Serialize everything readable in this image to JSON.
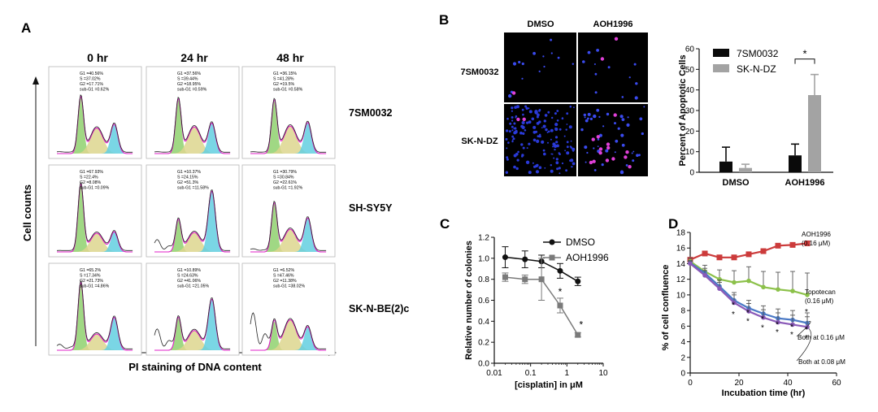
{
  "panels": {
    "A": {
      "label": "A",
      "columns": [
        "0 hr",
        "24 hr",
        "48 hr"
      ],
      "rows": [
        "7SM0032",
        "SH-SY5Y",
        "SK-N-BE(2)c"
      ],
      "y_label": "Cell counts",
      "x_label": "PI staining of DNA content",
      "stats": [
        [
          {
            "g1": "G1 =40.56%",
            "s": "S =37.02%",
            "g2": "G2 =17.71%",
            "subg1": "sub-G1 =0.62%"
          },
          {
            "g1": "G1 =37.56%",
            "s": "S =39.44%",
            "g2": "G2 =18.95%",
            "subg1": "sub-G1 =0.59%"
          },
          {
            "g1": "G1 =36.15%",
            "s": "S =41.28%",
            "g2": "G2 =19.5%",
            "subg1": "sub-G1 =0.58%"
          }
        ],
        [
          {
            "g1": "G1 =67.93%",
            "s": "S =22.4%",
            "g2": "G2 =8.08%",
            "subg1": "sub-G1 =0.09%"
          },
          {
            "g1": "G1 =10.37%",
            "s": "S =24.15%",
            "g2": "G2 =51.3%",
            "subg1": "sub-G1 =11.58%"
          },
          {
            "g1": "G1 =30.79%",
            "s": "S =30.84%",
            "g2": "G2 =22.61%",
            "subg1": "sub-G1 =1.92%"
          }
        ],
        [
          {
            "g1": "G1 =65.2%",
            "s": "S =17.34%",
            "g2": "G2 =21.73%",
            "subg1": "sub-G1 =4.86%"
          },
          {
            "g1": "G1 =10.89%",
            "s": "S =24.63%",
            "g2": "G2 =41.06%",
            "subg1": "sub-G1 =21.05%"
          },
          {
            "g1": "G1 =6.52%",
            "s": "S =47.46%",
            "g2": "G2 =11.38%",
            "subg1": "sub-G1 =38.02%"
          }
        ]
      ]
    },
    "B": {
      "label": "B",
      "image_columns": [
        "DMSO",
        "AOH1996"
      ],
      "image_rows": [
        "7SM0032",
        "SK-N-DZ"
      ]
    },
    "C": {
      "label": "C"
    },
    "D": {
      "label": "D"
    }
  },
  "colors": {
    "g1": "#8fd16f",
    "s": "#ddd68e",
    "g2": "#63cfe0",
    "fit": "#e020c8",
    "black_bar": "#0a0a0a",
    "gray_bar": "#a3a3a3",
    "dmso": "#111111",
    "aoh": "#7a7a7a",
    "d_red": "#cc3b3b",
    "d_green": "#8cc14a",
    "d_blue": "#4a79c5",
    "d_purple": "#8a5ab8"
  },
  "chart_data": [
    {
      "type": "bar",
      "panel": "B",
      "categories": [
        "DMSO",
        "AOH1996"
      ],
      "series": [
        {
          "name": "7SM0032",
          "values": [
            5.2,
            8.2
          ],
          "errors": [
            7,
            5.5
          ]
        },
        {
          "name": "SK-N-DZ",
          "values": [
            2.1,
            37.5
          ],
          "errors": [
            1.8,
            10
          ]
        }
      ],
      "ylabel": "Percent of Apoptotic Cells",
      "ylim": [
        0,
        60
      ],
      "yticks": [
        "0",
        "10",
        "20",
        "30",
        "40",
        "50",
        "60"
      ],
      "annotations": [
        "*"
      ],
      "legend": "top-right",
      "grid": false
    },
    {
      "type": "line",
      "panel": "C",
      "x_scale": "log",
      "xlim": [
        0.01,
        10
      ],
      "xticks": [
        "0.01",
        "0.1",
        "1",
        "10"
      ],
      "ylim": [
        0.0,
        1.2
      ],
      "yticks": [
        "0.0",
        "0.2",
        "0.4",
        "0.6",
        "0.8",
        "1.0",
        "1.2"
      ],
      "xlabel": "[cisplatin] in μM",
      "ylabel": "Relative number of colonies",
      "series": [
        {
          "name": "DMSO",
          "marker": "circle",
          "x": [
            0.02,
            0.07,
            0.2,
            0.65,
            2.0
          ],
          "y": [
            1.01,
            0.99,
            0.97,
            0.88,
            0.78
          ],
          "errors": [
            0.1,
            0.08,
            0.06,
            0.07,
            0.04
          ]
        },
        {
          "name": "AOH1996",
          "marker": "square",
          "x": [
            0.02,
            0.07,
            0.2,
            0.65,
            2.0
          ],
          "y": [
            0.82,
            0.8,
            0.8,
            0.55,
            0.27
          ],
          "errors": [
            0.04,
            0.04,
            0.2,
            0.07,
            0.02
          ]
        }
      ],
      "annotations": [
        "*",
        "*"
      ],
      "legend": "top-right",
      "grid": false
    },
    {
      "type": "line",
      "panel": "D",
      "xlim": [
        0,
        60
      ],
      "xticks": [
        "0",
        "20",
        "40",
        "60"
      ],
      "ylim": [
        0,
        18
      ],
      "yticks": [
        "0",
        "2",
        "4",
        "6",
        "8",
        "10",
        "12",
        "14",
        "16",
        "18"
      ],
      "xlabel": "Incubation time (hr)",
      "ylabel": "% of cell confluence",
      "series": [
        {
          "name": "AOH1996 (0.16 μM)",
          "label_lines": [
            "AOH1996",
            "(0.16 μM)"
          ],
          "x": [
            0,
            6,
            12,
            18,
            24,
            30,
            36,
            42,
            48
          ],
          "y": [
            14.5,
            15.3,
            14.8,
            14.8,
            15.2,
            15.6,
            16.3,
            16.4,
            16.6
          ],
          "errors": [
            0.2,
            0.2,
            0.2,
            0.2,
            0.2,
            0.3,
            0.3,
            0.3,
            0.3
          ]
        },
        {
          "name": "Topotecan (0.16 μM)",
          "label_lines": [
            "Topotecan",
            "(0.16 μM)"
          ],
          "x": [
            0,
            6,
            12,
            18,
            24,
            30,
            36,
            42,
            48
          ],
          "y": [
            14.3,
            13.0,
            12.0,
            11.6,
            11.8,
            11.0,
            10.7,
            10.5,
            10.0
          ],
          "errors": [
            0.4,
            0.8,
            1.2,
            1.5,
            1.8,
            2.0,
            2.2,
            2.5,
            2.8
          ]
        },
        {
          "name": "Both at 0.16 μM",
          "label_lines": [
            "Both at 0.16 μM"
          ],
          "x": [
            0,
            6,
            12,
            18,
            24,
            30,
            36,
            42,
            48
          ],
          "y": [
            14.1,
            12.8,
            11.1,
            9.3,
            8.3,
            7.6,
            7.0,
            6.8,
            6.4
          ],
          "errors": [
            0.3,
            0.6,
            0.8,
            1.0,
            1.0,
            1.0,
            1.2,
            1.2,
            1.3
          ]
        },
        {
          "name": "Both at 0.08 μM",
          "label_lines": [
            "Both at 0.08 μM"
          ],
          "x": [
            0,
            6,
            12,
            18,
            24,
            30,
            36,
            42,
            48
          ],
          "y": [
            14.0,
            12.5,
            10.8,
            9.0,
            7.9,
            7.1,
            6.5,
            6.2,
            5.9
          ],
          "errors": [
            0.3,
            0.6,
            0.8,
            1.0,
            1.0,
            1.0,
            1.2,
            1.2,
            1.3
          ]
        }
      ],
      "annotations": [
        "*",
        "*",
        "*",
        "*",
        "*",
        "*",
        "*",
        "*",
        "*",
        "*",
        "*",
        "*",
        "*"
      ],
      "grid": false
    }
  ]
}
